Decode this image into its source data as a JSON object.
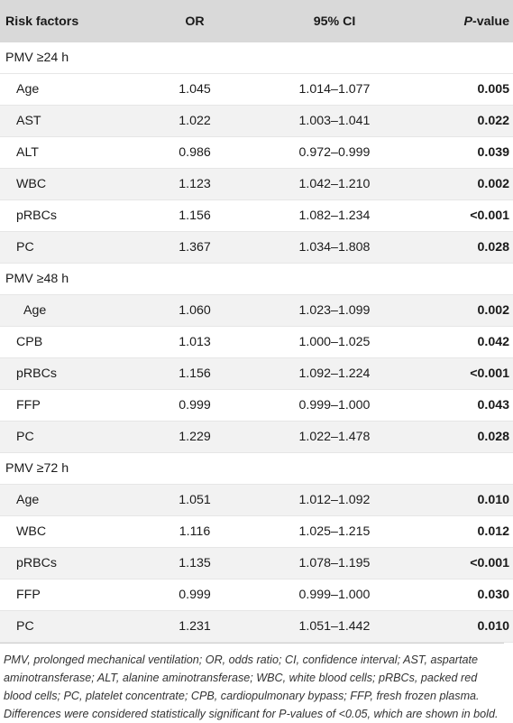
{
  "table": {
    "headers": {
      "risk": "Risk factors",
      "or": "OR",
      "ci": "95% CI",
      "p_prefix": "P",
      "p_suffix": "-value"
    },
    "groups": [
      {
        "label": "PMV ≥24 h",
        "rows": [
          {
            "factor": "Age",
            "or": "1.045",
            "ci": "1.014–1.077",
            "p": "0.005"
          },
          {
            "factor": "AST",
            "or": "1.022",
            "ci": "1.003–1.041",
            "p": "0.022"
          },
          {
            "factor": "ALT",
            "or": "0.986",
            "ci": "0.972–0.999",
            "p": "0.039"
          },
          {
            "factor": "WBC",
            "or": "1.123",
            "ci": "1.042–1.210",
            "p": "0.002"
          },
          {
            "factor": "pRBCs",
            "or": "1.156",
            "ci": "1.082–1.234",
            "p": "<0.001"
          },
          {
            "factor": "PC",
            "or": "1.367",
            "ci": "1.034–1.808",
            "p": "0.028"
          }
        ]
      },
      {
        "label": "PMV ≥48 h",
        "rows": [
          {
            "factor": "Age",
            "or": "1.060",
            "ci": "1.023–1.099",
            "p": "0.002"
          },
          {
            "factor": "CPB",
            "or": "1.013",
            "ci": "1.000–1.025",
            "p": "0.042"
          },
          {
            "factor": "pRBCs",
            "or": "1.156",
            "ci": "1.092–1.224",
            "p": "<0.001"
          },
          {
            "factor": "FFP",
            "or": "0.999",
            "ci": "0.999–1.000",
            "p": "0.043"
          },
          {
            "factor": "PC",
            "or": "1.229",
            "ci": "1.022–1.478",
            "p": "0.028"
          }
        ]
      },
      {
        "label": "PMV ≥72 h",
        "rows": [
          {
            "factor": "Age",
            "or": "1.051",
            "ci": "1.012–1.092",
            "p": "0.010"
          },
          {
            "factor": "WBC",
            "or": "1.116",
            "ci": "1.025–1.215",
            "p": "0.012"
          },
          {
            "factor": "pRBCs",
            "or": "1.135",
            "ci": "1.078–1.195",
            "p": "<0.001"
          },
          {
            "factor": "FFP",
            "or": "0.999",
            "ci": "0.999–1.000",
            "p": "0.030"
          },
          {
            "factor": "PC",
            "or": "1.231",
            "ci": "1.051–1.442",
            "p": "0.010"
          }
        ]
      }
    ]
  },
  "footnotes": {
    "abbreviations": "PMV, prolonged mechanical ventilation; OR, odds ratio; CI, confidence interval; AST, aspartate aminotransferase; ALT, alanine aminotransferase; WBC, white blood cells; pRBCs, packed red blood cells; PC, platelet concentrate; CPB, cardiopulmonary bypass; FFP, fresh frozen plasma.",
    "significance": "Differences were considered statistically significant for P-values of <0.05, which are shown in bold."
  }
}
